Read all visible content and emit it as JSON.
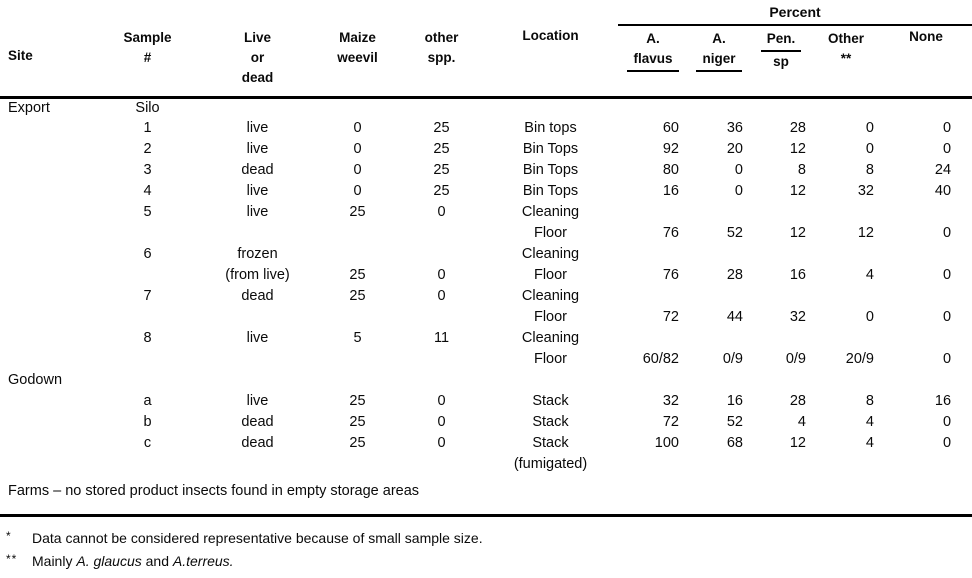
{
  "table": {
    "percent_header": "Percent",
    "columns": {
      "site": "Site",
      "sample_line1": "Sample",
      "sample_line2": "#",
      "live_line1": "Live",
      "live_line2": "or",
      "live_line3": "dead",
      "maize_line1": "Maize",
      "maize_line2": "weevil",
      "otherspp_line1": "other",
      "otherspp_line2": "spp.",
      "location": "Location",
      "aflavus_line1": "A.",
      "aflavus_line2": "flavus",
      "aniger_line1": "A.",
      "aniger_line2": "niger",
      "pensp_line1": "Pen.",
      "pensp_line2": "sp",
      "other_line1": "Other",
      "other_line2": "**",
      "none": "None"
    },
    "rows": [
      [
        "Export",
        "Silo",
        "",
        "",
        "",
        "",
        "",
        "",
        "",
        "",
        ""
      ],
      [
        "",
        "1",
        "live",
        "0",
        "25",
        "Bin tops",
        "60",
        "36",
        "28",
        "0",
        "0"
      ],
      [
        "",
        "2",
        "live",
        "0",
        "25",
        "Bin Tops",
        "92",
        "20",
        "12",
        "0",
        "0"
      ],
      [
        "",
        "3",
        "dead",
        "0",
        "25",
        "Bin Tops",
        "80",
        "0",
        "8",
        "8",
        "24"
      ],
      [
        "",
        "4",
        "live",
        "0",
        "25",
        "Bin Tops",
        "16",
        "0",
        "12",
        "32",
        "40"
      ],
      [
        "",
        "5",
        "live",
        "25",
        "0",
        "Cleaning",
        "",
        "",
        "",
        "",
        ""
      ],
      [
        "",
        "",
        "",
        "",
        "",
        "Floor",
        "76",
        "52",
        "12",
        "12",
        "0"
      ],
      [
        "",
        "6",
        "frozen",
        "",
        "",
        "Cleaning",
        "",
        "",
        "",
        "",
        ""
      ],
      [
        "",
        "",
        "(from live)",
        "25",
        "0",
        "Floor",
        "76",
        "28",
        "16",
        "4",
        "0"
      ],
      [
        "",
        "7",
        "dead",
        "25",
        "0",
        "Cleaning",
        "",
        "",
        "",
        "",
        ""
      ],
      [
        "",
        "",
        "",
        "",
        "",
        "Floor",
        "72",
        "44",
        "32",
        "0",
        "0"
      ],
      [
        "",
        "8",
        "live",
        "5",
        "11",
        "Cleaning",
        "",
        "",
        "",
        "",
        ""
      ],
      [
        "",
        "",
        "",
        "",
        "",
        "Floor",
        "60/82",
        "0/9",
        "0/9",
        "20/9",
        "0"
      ],
      [
        "Godown",
        "",
        "",
        "",
        "",
        "",
        "",
        "",
        "",
        "",
        ""
      ],
      [
        "",
        "a",
        "live",
        "25",
        "0",
        "Stack",
        "32",
        "16",
        "28",
        "8",
        "16"
      ],
      [
        "",
        "b",
        "dead",
        "25",
        "0",
        "Stack",
        "72",
        "52",
        "4",
        "4",
        "0"
      ],
      [
        "",
        "c",
        "dead",
        "25",
        "0",
        "Stack",
        "100",
        "68",
        "12",
        "4",
        "0"
      ],
      [
        "",
        "",
        "",
        "",
        "",
        "(fumigated)",
        "",
        "",
        "",
        "",
        ""
      ]
    ]
  },
  "farms_note": "Farms  –  no stored product insects found in empty storage areas",
  "footnotes": {
    "first_marker": "*",
    "first_text": "Data cannot be considered representative because of small sample size.",
    "second_marker": "**",
    "second_prefix": "Mainly",
    "second_italic1": "A. glaucus",
    "second_and": "and",
    "second_italic2": "A.terreus."
  }
}
